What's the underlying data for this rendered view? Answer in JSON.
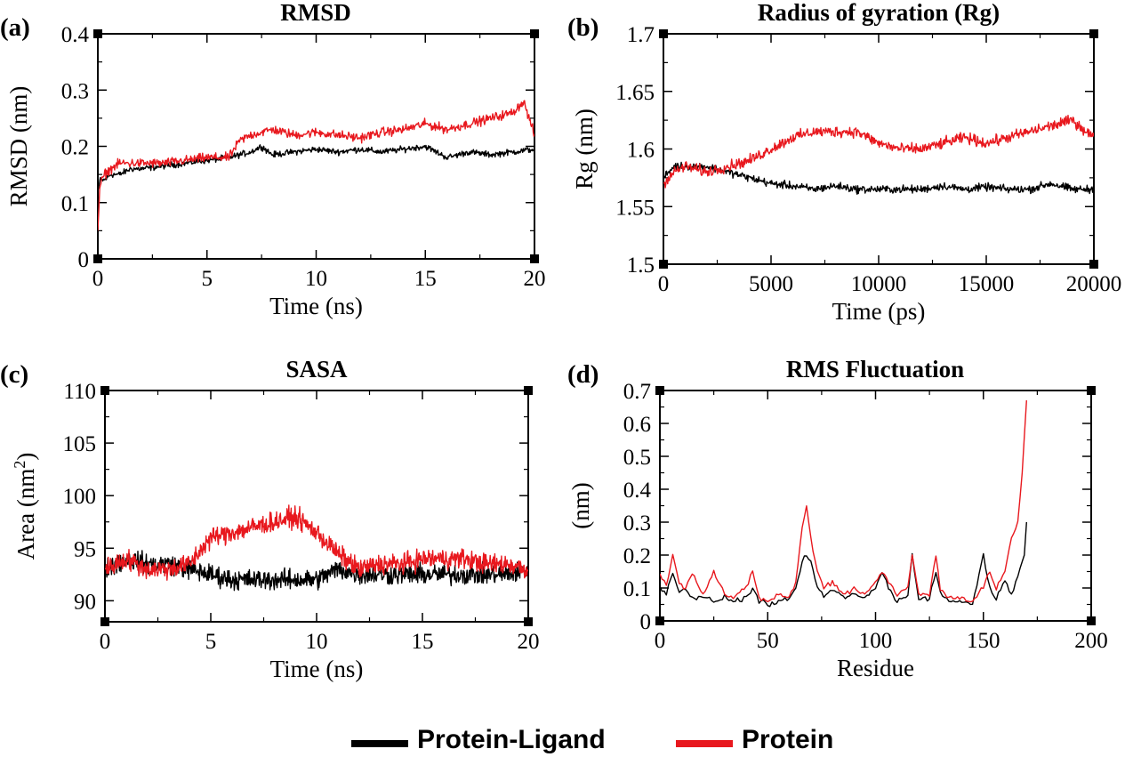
{
  "legend": {
    "protein_ligand_label": "Protein-Ligand",
    "protein_label": "Protein",
    "protein_ligand_color": "#000000",
    "protein_color": "#e8181e"
  },
  "chart_data": [
    {
      "id": "a",
      "panel_label": "(a)",
      "type": "line",
      "title": "RMSD",
      "xlabel": "Time (ns)",
      "ylabel": "RMSD (nm)",
      "xlim": [
        0,
        20
      ],
      "ylim": [
        0,
        0.4
      ],
      "xticks": [
        "0",
        "5",
        "10",
        "15",
        "20"
      ],
      "yticks": [
        "0",
        "0.1",
        "0.2",
        "0.3",
        "0.4"
      ],
      "series": [
        {
          "name": "Protein-Ligand",
          "color": "#000000",
          "x": [
            0,
            0.1,
            0.3,
            0.6,
            1,
            1.5,
            2,
            3,
            4,
            5,
            6,
            7,
            7.5,
            8,
            9,
            10,
            11,
            12,
            13,
            14,
            15,
            15.5,
            16,
            17,
            18,
            19,
            20
          ],
          "y": [
            0.12,
            0.14,
            0.14,
            0.15,
            0.15,
            0.16,
            0.16,
            0.165,
            0.17,
            0.175,
            0.18,
            0.19,
            0.2,
            0.185,
            0.19,
            0.195,
            0.19,
            0.195,
            0.19,
            0.195,
            0.2,
            0.19,
            0.18,
            0.19,
            0.185,
            0.19,
            0.195
          ]
        },
        {
          "name": "Protein",
          "color": "#e8181e",
          "x": [
            0,
            0.1,
            0.3,
            0.6,
            1,
            1.5,
            2,
            3,
            4,
            5,
            6,
            6.5,
            7,
            8,
            9,
            10,
            11,
            12,
            13,
            14,
            15,
            16,
            17,
            18,
            19,
            19.5,
            20
          ],
          "y": [
            0.05,
            0.13,
            0.15,
            0.16,
            0.17,
            0.17,
            0.17,
            0.17,
            0.175,
            0.18,
            0.18,
            0.21,
            0.22,
            0.23,
            0.22,
            0.225,
            0.22,
            0.215,
            0.225,
            0.23,
            0.24,
            0.23,
            0.24,
            0.25,
            0.26,
            0.28,
            0.22
          ]
        }
      ]
    },
    {
      "id": "b",
      "panel_label": "(b)",
      "type": "line",
      "title": "Radius of gyration (Rg)",
      "xlabel": "Time (ps)",
      "ylabel": "Rg (nm)",
      "xlim": [
        0,
        20000
      ],
      "ylim": [
        1.5,
        1.7
      ],
      "xticks": [
        "0",
        "5000",
        "10000",
        "15000",
        "20000"
      ],
      "yticks": [
        "1.5",
        "1.55",
        "1.6",
        "1.65",
        "1.7"
      ],
      "series": [
        {
          "name": "Protein-Ligand",
          "color": "#000000",
          "x": [
            0,
            500,
            1000,
            2000,
            3000,
            4000,
            5000,
            6000,
            7000,
            8000,
            9000,
            10000,
            11000,
            12000,
            13000,
            14000,
            15000,
            16000,
            17000,
            18000,
            19000,
            20000
          ],
          "y": [
            1.575,
            1.585,
            1.585,
            1.585,
            1.58,
            1.575,
            1.57,
            1.568,
            1.565,
            1.568,
            1.565,
            1.565,
            1.565,
            1.565,
            1.568,
            1.565,
            1.567,
            1.565,
            1.565,
            1.57,
            1.565,
            1.565
          ]
        },
        {
          "name": "Protein",
          "color": "#e8181e",
          "x": [
            0,
            500,
            1000,
            2000,
            3000,
            4000,
            5000,
            6000,
            7000,
            8000,
            9000,
            10000,
            11000,
            12000,
            13000,
            14000,
            15000,
            16000,
            17000,
            18000,
            19000,
            20000
          ],
          "y": [
            1.57,
            1.58,
            1.585,
            1.58,
            1.585,
            1.59,
            1.6,
            1.61,
            1.615,
            1.615,
            1.615,
            1.605,
            1.6,
            1.6,
            1.605,
            1.61,
            1.605,
            1.61,
            1.615,
            1.62,
            1.625,
            1.61
          ]
        }
      ]
    },
    {
      "id": "c",
      "panel_label": "(c)",
      "type": "line",
      "title": "SASA",
      "xlabel": "Time (ns)",
      "ylabel": "Area (nm",
      "ylabel_sup": "2",
      "ylabel_end": ")",
      "xlim": [
        0,
        20
      ],
      "ylim": [
        88,
        110
      ],
      "xticks": [
        "0",
        "5",
        "10",
        "15",
        "20"
      ],
      "yticks": [
        "90",
        "95",
        "100",
        "105",
        "110"
      ],
      "series": [
        {
          "name": "Protein-Ligand",
          "color": "#000000",
          "x": [
            0,
            1,
            2,
            3,
            4,
            5,
            6,
            7,
            8,
            9,
            10,
            11,
            12,
            13,
            14,
            15,
            16,
            17,
            18,
            19,
            20
          ],
          "y": [
            93,
            94,
            93.5,
            93.5,
            93,
            92.5,
            92,
            92,
            92,
            92,
            92,
            93,
            92.5,
            92.5,
            92.5,
            92.5,
            92.5,
            92.5,
            92.5,
            92.5,
            93
          ]
        },
        {
          "name": "Protein",
          "color": "#e8181e",
          "x": [
            0,
            1,
            2,
            3,
            4,
            5,
            6,
            7,
            8,
            9,
            10,
            11,
            12,
            13,
            14,
            15,
            16,
            17,
            18,
            19,
            20
          ],
          "y": [
            93,
            94,
            93,
            93,
            93.5,
            96,
            96.5,
            97,
            97.5,
            98,
            96.5,
            94.5,
            93,
            93.5,
            93.5,
            94,
            94,
            94,
            93.5,
            93.5,
            93
          ]
        }
      ]
    },
    {
      "id": "d",
      "panel_label": "(d)",
      "type": "line",
      "title": "RMS Fluctuation",
      "xlabel": "Residue",
      "ylabel": "(nm)",
      "xlim": [
        0,
        200
      ],
      "ylim": [
        0,
        0.7
      ],
      "xticks": [
        "0",
        "50",
        "100",
        "150",
        "200"
      ],
      "yticks": [
        "0",
        "0.1",
        "0.2",
        "0.3",
        "0.4",
        "0.5",
        "0.6",
        "0.7"
      ],
      "series": [
        {
          "name": "Protein-Ligand",
          "color": "#000000",
          "x": [
            0,
            3,
            6,
            9,
            12,
            15,
            20,
            25,
            30,
            35,
            40,
            43,
            46,
            50,
            55,
            60,
            63,
            66,
            68,
            70,
            73,
            76,
            80,
            85,
            90,
            95,
            100,
            103,
            106,
            110,
            115,
            117,
            120,
            125,
            128,
            130,
            135,
            140,
            145,
            150,
            153,
            156,
            160,
            163,
            166,
            169,
            170
          ],
          "y": [
            0.1,
            0.08,
            0.15,
            0.09,
            0.1,
            0.07,
            0.07,
            0.06,
            0.07,
            0.06,
            0.07,
            0.1,
            0.06,
            0.05,
            0.06,
            0.06,
            0.1,
            0.18,
            0.2,
            0.18,
            0.1,
            0.07,
            0.1,
            0.07,
            0.08,
            0.07,
            0.1,
            0.15,
            0.1,
            0.06,
            0.08,
            0.2,
            0.07,
            0.07,
            0.15,
            0.08,
            0.06,
            0.06,
            0.05,
            0.2,
            0.1,
            0.07,
            0.12,
            0.08,
            0.14,
            0.2,
            0.3
          ]
        },
        {
          "name": "Protein",
          "color": "#e8181e",
          "x": [
            0,
            3,
            6,
            9,
            12,
            15,
            20,
            25,
            30,
            35,
            40,
            43,
            46,
            50,
            55,
            60,
            63,
            66,
            68,
            70,
            73,
            76,
            80,
            85,
            90,
            95,
            100,
            103,
            106,
            110,
            115,
            117,
            120,
            125,
            128,
            130,
            135,
            140,
            145,
            150,
            153,
            156,
            160,
            163,
            166,
            168,
            170
          ],
          "y": [
            0.15,
            0.1,
            0.2,
            0.12,
            0.1,
            0.15,
            0.08,
            0.15,
            0.08,
            0.07,
            0.1,
            0.15,
            0.07,
            0.06,
            0.08,
            0.07,
            0.12,
            0.28,
            0.35,
            0.25,
            0.15,
            0.1,
            0.12,
            0.08,
            0.1,
            0.08,
            0.12,
            0.15,
            0.12,
            0.08,
            0.1,
            0.2,
            0.08,
            0.08,
            0.2,
            0.1,
            0.07,
            0.07,
            0.06,
            0.1,
            0.15,
            0.1,
            0.15,
            0.25,
            0.3,
            0.45,
            0.67
          ]
        }
      ]
    }
  ]
}
